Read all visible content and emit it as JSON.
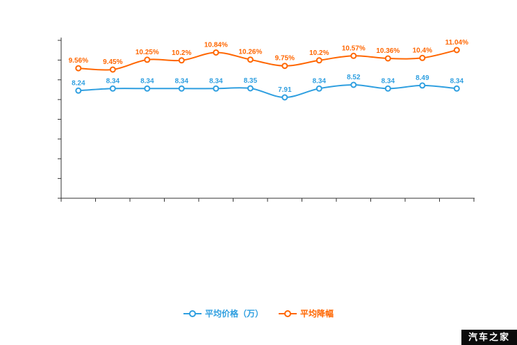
{
  "page": {
    "background": "#ffffff",
    "watermark": "汽车之家"
  },
  "axes": {
    "color": "#333333",
    "x_tick_count": 13,
    "y_tick_count": 9
  },
  "chart_data": {
    "type": "line",
    "title": "",
    "xlabel": "",
    "ylabel": "",
    "grid": false,
    "legend_position": "bottom",
    "point_count": 12,
    "categories": [
      "",
      "",
      "",
      "",
      "",
      "",
      "",
      "",
      "",
      "",
      "",
      ""
    ],
    "series": [
      {
        "name": "平均价格（万）",
        "color": "#2f9fe0",
        "values": [
          8.24,
          8.34,
          8.34,
          8.34,
          8.34,
          8.35,
          7.91,
          8.34,
          8.52,
          8.34,
          8.49,
          8.34
        ],
        "labels": [
          "8.24",
          "8.34",
          "8.34",
          "8.34",
          "8.34",
          "8.35",
          "7.91",
          "8.34",
          "8.52",
          "8.34",
          "8.49",
          "8.34"
        ]
      },
      {
        "name": "平均降幅",
        "color": "#ff6600",
        "values": [
          9.56,
          9.45,
          10.25,
          10.2,
          10.84,
          10.26,
          9.75,
          10.2,
          10.57,
          10.36,
          10.4,
          11.04
        ],
        "labels": [
          "9.56%",
          "9.45%",
          "10.25%",
          "10.2%",
          "10.84%",
          "10.26%",
          "9.75%",
          "10.2%",
          "10.57%",
          "10.36%",
          "10.4%",
          "11.04%"
        ]
      }
    ]
  }
}
